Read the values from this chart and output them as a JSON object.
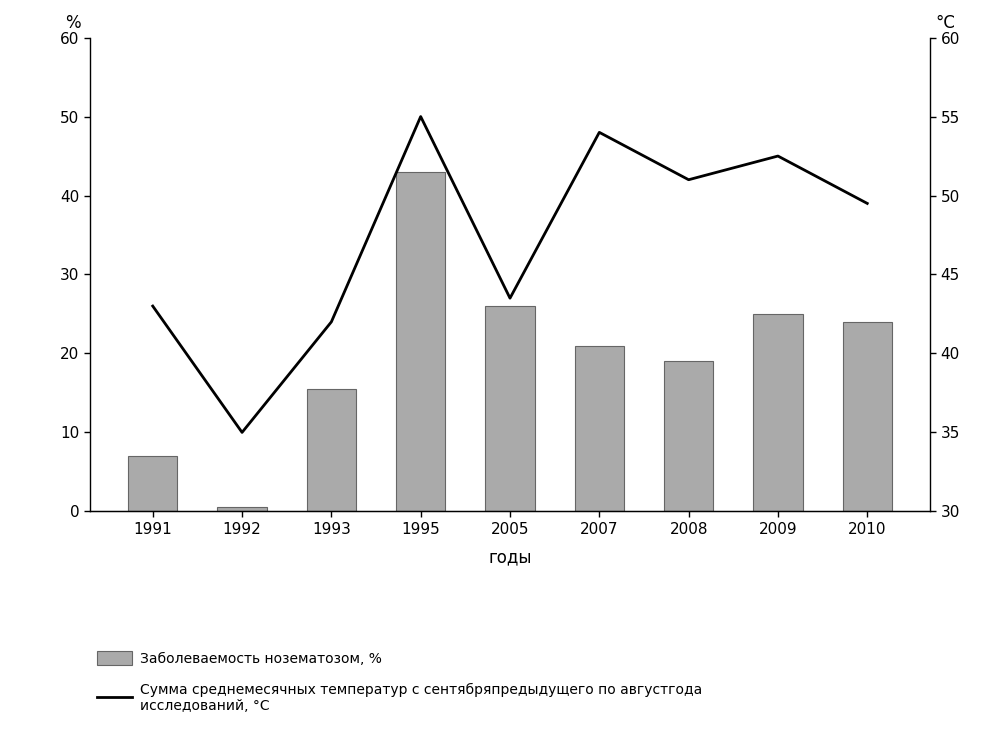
{
  "years": [
    "1991",
    "1992",
    "1993",
    "1995",
    "2005",
    "2007",
    "2008",
    "2009",
    "2010"
  ],
  "bar_values": [
    7.0,
    0.5,
    15.5,
    43.0,
    26.0,
    21.0,
    19.0,
    25.0,
    24.0
  ],
  "line_values": [
    43.0,
    35.0,
    42.0,
    55.0,
    43.5,
    54.0,
    51.0,
    52.5,
    49.5
  ],
  "bar_color": "#aaaaaa",
  "bar_edgecolor": "#666666",
  "line_color": "#000000",
  "xlabel": "годы",
  "left_ylim": [
    0,
    60
  ],
  "right_ylim": [
    30,
    60
  ],
  "left_yticks": [
    0,
    10,
    20,
    30,
    40,
    50,
    60
  ],
  "right_yticks": [
    30,
    35,
    40,
    45,
    50,
    55,
    60
  ],
  "legend_bar_label": "Заболеваемость нозематозом, %",
  "legend_line_label": "Сумма среднемесячных температур с сентябряпредыдущего по августгода\nисследований, °C",
  "background_color": "#ffffff",
  "figsize": [
    10.0,
    7.52
  ],
  "dpi": 100
}
